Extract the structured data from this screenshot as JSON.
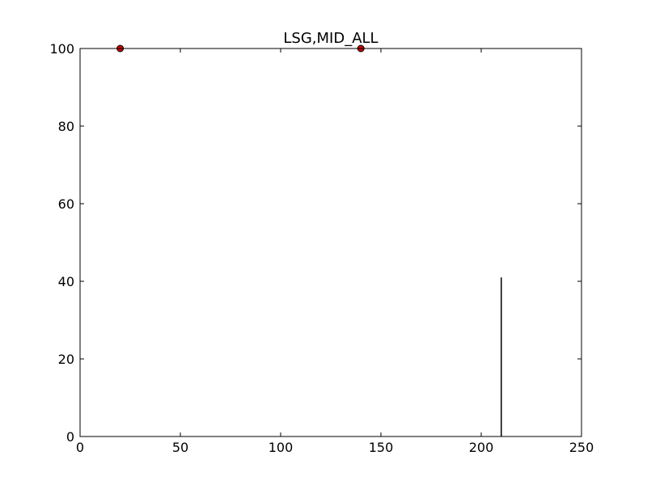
{
  "chart_data": {
    "type": "scatter",
    "title": "LSG,MID_ALL",
    "xlabel": "",
    "ylabel": "",
    "xlim": [
      0,
      250
    ],
    "ylim": [
      0,
      100
    ],
    "xticks": [
      0,
      50,
      100,
      150,
      200,
      250
    ],
    "yticks": [
      0,
      20,
      40,
      60,
      80,
      100
    ],
    "grid": false,
    "series": [
      {
        "type": "scatter",
        "color": "#cc0000",
        "edge_color": "#000000",
        "points": [
          {
            "x": 20,
            "y": 100
          },
          {
            "x": 140,
            "y": 100
          }
        ]
      },
      {
        "type": "vline",
        "color": "#000000",
        "segments": [
          {
            "x": 210,
            "y0": 0,
            "y1": 41
          }
        ]
      }
    ]
  }
}
